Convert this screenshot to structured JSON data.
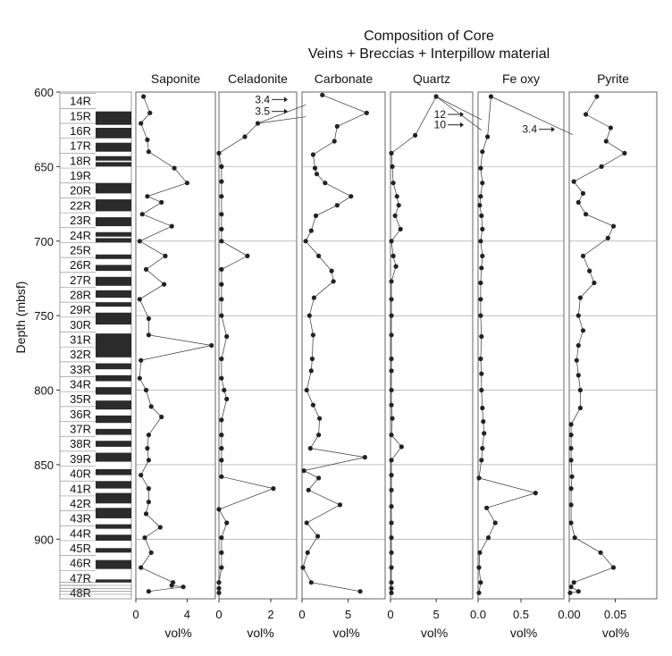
{
  "chart_data": {
    "type": "scatter",
    "title": "Composition of Core",
    "subtitle": "Veins + Breccias + Interpillow material",
    "ylabel": "Depth (mbsf)",
    "ylim": [
      600,
      940
    ],
    "yticks": [
      600,
      650,
      700,
      750,
      800,
      850,
      900
    ],
    "boundaries": [
      650,
      700,
      750,
      800,
      850,
      900
    ],
    "cores": [
      "14R",
      "15R",
      "16R",
      "17R",
      "18R",
      "19R",
      "20R",
      "22R",
      "23R",
      "24R",
      "25R",
      "26R",
      "27R",
      "28R",
      "29R",
      "30R",
      "31R",
      "32R",
      "33R",
      "34R",
      "35R",
      "36R",
      "37R",
      "38R",
      "39R",
      "40R",
      "41R",
      "42R",
      "43R",
      "44R",
      "45R",
      "46R",
      "47R",
      "48R"
    ],
    "recovery_blocks": [
      [
        613,
        622
      ],
      [
        624,
        631
      ],
      [
        634,
        640
      ],
      [
        643,
        646
      ],
      [
        647,
        650
      ],
      [
        661,
        668
      ],
      [
        672,
        680
      ],
      [
        684,
        690
      ],
      [
        694,
        697
      ],
      [
        698,
        701
      ],
      [
        709,
        712
      ],
      [
        716,
        720
      ],
      [
        724,
        730
      ],
      [
        733,
        738
      ],
      [
        741,
        744
      ],
      [
        748,
        756
      ],
      [
        762,
        778
      ],
      [
        782,
        786
      ],
      [
        790,
        794
      ],
      [
        798,
        803
      ],
      [
        807,
        813
      ],
      [
        817,
        822
      ],
      [
        826,
        830
      ],
      [
        834,
        838
      ],
      [
        842,
        848
      ],
      [
        853,
        857
      ],
      [
        861,
        866
      ],
      [
        869,
        876
      ],
      [
        879,
        886
      ],
      [
        890,
        893
      ],
      [
        897,
        901
      ],
      [
        906,
        909
      ],
      [
        914,
        920
      ],
      [
        927,
        929
      ]
    ],
    "panels": [
      {
        "name": "Saponite",
        "xlim": [
          0,
          6.2
        ],
        "xticks": [
          0,
          4
        ],
        "tick_labels": [
          "0",
          "4"
        ],
        "xlabel": "vol%",
        "points": [
          [
            0.6,
            603
          ],
          [
            1.1,
            614
          ],
          [
            0.4,
            621
          ],
          [
            0.9,
            632
          ],
          [
            1.0,
            640
          ],
          [
            3.0,
            651
          ],
          [
            4.0,
            661
          ],
          [
            0.9,
            670
          ],
          [
            2.0,
            674
          ],
          [
            0.5,
            682
          ],
          [
            2.8,
            690
          ],
          [
            0.3,
            700
          ],
          [
            2.3,
            710
          ],
          [
            0.8,
            719
          ],
          [
            2.2,
            729
          ],
          [
            0.3,
            739
          ],
          [
            1.0,
            752
          ],
          [
            1.0,
            763
          ],
          [
            5.9,
            770
          ],
          [
            0.4,
            780
          ],
          [
            0.3,
            792
          ],
          [
            0.8,
            800
          ],
          [
            1.2,
            811
          ],
          [
            2.0,
            818
          ],
          [
            1.0,
            830
          ],
          [
            0.9,
            839
          ],
          [
            1.0,
            847
          ],
          [
            0.4,
            857
          ],
          [
            1.0,
            866
          ],
          [
            1.0,
            875
          ],
          [
            0.8,
            883
          ],
          [
            1.9,
            892
          ],
          [
            0.7,
            899
          ],
          [
            1.2,
            909
          ],
          [
            0.4,
            919
          ],
          [
            2.9,
            929
          ],
          [
            3.7,
            932
          ],
          [
            1.0,
            935
          ],
          [
            2.8,
            931
          ]
        ]
      },
      {
        "name": "Celadonite",
        "xlim": [
          0,
          3.0
        ],
        "xticks": [
          0,
          2
        ],
        "tick_labels": [
          "0",
          "2"
        ],
        "xlabel": "vol%",
        "points": [
          [
            1.0,
            630
          ],
          [
            1.5,
            621
          ],
          [
            0,
            641
          ],
          [
            0.1,
            650
          ],
          [
            0.1,
            660
          ],
          [
            0.1,
            670
          ],
          [
            0.1,
            682
          ],
          [
            0.1,
            692
          ],
          [
            0.1,
            700
          ],
          [
            1.1,
            710
          ],
          [
            0.1,
            719
          ],
          [
            0.1,
            729
          ],
          [
            0.1,
            739
          ],
          [
            0.1,
            750
          ],
          [
            0.3,
            764
          ],
          [
            0.1,
            779
          ],
          [
            0.1,
            792
          ],
          [
            0.2,
            800
          ],
          [
            0.3,
            806
          ],
          [
            0.1,
            820
          ],
          [
            0.1,
            830
          ],
          [
            0.1,
            839
          ],
          [
            0.1,
            847
          ],
          [
            0.1,
            858
          ],
          [
            2.1,
            866
          ],
          [
            0,
            880
          ],
          [
            0.3,
            889
          ],
          [
            0.1,
            899
          ],
          [
            0.1,
            909
          ],
          [
            0.1,
            919
          ],
          [
            0,
            929
          ],
          [
            0,
            933
          ],
          [
            0,
            936
          ]
        ],
        "off_scale": [
          {
            "label": "3.4",
            "depth": 605
          },
          {
            "label": "3.5",
            "depth": 613
          }
        ]
      },
      {
        "name": "Carbonate",
        "xlim": [
          0,
          9.0
        ],
        "xticks": [
          0,
          5
        ],
        "tick_labels": [
          "0",
          "5"
        ],
        "xlabel": "vol%",
        "points": [
          [
            2.2,
            602
          ],
          [
            7.0,
            614
          ],
          [
            3.8,
            623
          ],
          [
            3.5,
            633
          ],
          [
            1.2,
            642
          ],
          [
            1.4,
            651
          ],
          [
            1.6,
            655
          ],
          [
            2.5,
            661
          ],
          [
            5.3,
            670
          ],
          [
            3.8,
            676
          ],
          [
            1.5,
            683
          ],
          [
            1.0,
            693
          ],
          [
            0.4,
            700
          ],
          [
            1.8,
            710
          ],
          [
            3.2,
            720
          ],
          [
            3.4,
            727
          ],
          [
            1.3,
            738
          ],
          [
            0.8,
            750
          ],
          [
            1.2,
            763
          ],
          [
            1.1,
            779
          ],
          [
            1.0,
            787
          ],
          [
            0.5,
            800
          ],
          [
            1.2,
            810
          ],
          [
            1.9,
            819
          ],
          [
            1.8,
            830
          ],
          [
            0.9,
            839
          ],
          [
            6.8,
            845
          ],
          [
            0.2,
            854
          ],
          [
            1.8,
            859
          ],
          [
            0.7,
            867
          ],
          [
            4.1,
            877
          ],
          [
            0.5,
            889
          ],
          [
            1.7,
            898
          ],
          [
            0.6,
            909
          ],
          [
            0.1,
            919
          ],
          [
            1.0,
            929
          ],
          [
            6.3,
            935
          ]
        ]
      },
      {
        "name": "Quartz",
        "xlim": [
          0,
          9.0
        ],
        "xticks": [
          0,
          5
        ],
        "tick_labels": [
          "0",
          "5"
        ],
        "xlabel": "vol%",
        "points": [
          [
            5.0,
            603
          ],
          [
            2.7,
            629
          ],
          [
            0.1,
            641
          ],
          [
            0.2,
            650
          ],
          [
            0.3,
            661
          ],
          [
            0.7,
            670
          ],
          [
            0.9,
            676
          ],
          [
            0.5,
            683
          ],
          [
            1.1,
            692
          ],
          [
            0.1,
            700
          ],
          [
            0.3,
            710
          ],
          [
            0.6,
            717
          ],
          [
            0.1,
            727
          ],
          [
            0.1,
            739
          ],
          [
            0.1,
            750
          ],
          [
            0.1,
            763
          ],
          [
            0.1,
            779
          ],
          [
            0.1,
            787
          ],
          [
            0.1,
            800
          ],
          [
            0.1,
            810
          ],
          [
            0.2,
            819
          ],
          [
            0.1,
            830
          ],
          [
            1.2,
            838
          ],
          [
            0.1,
            847
          ],
          [
            0.1,
            857
          ],
          [
            0.1,
            867
          ],
          [
            0.1,
            878
          ],
          [
            0.1,
            889
          ],
          [
            0.1,
            899
          ],
          [
            0.1,
            909
          ],
          [
            0.1,
            919
          ],
          [
            0.1,
            929
          ],
          [
            0.1,
            933
          ],
          [
            0.1,
            936
          ]
        ],
        "off_scale": [
          {
            "label": "12",
            "depth": 615
          },
          {
            "label": "10",
            "depth": 622
          }
        ]
      },
      {
        "name": "Fe oxy",
        "xlim": [
          0,
          1.0
        ],
        "xticks": [
          0,
          0.5
        ],
        "tick_labels": [
          "0.0",
          "0.5"
        ],
        "xlabel": "vol%",
        "points": [
          [
            0.15,
            603
          ],
          [
            0.11,
            630
          ],
          [
            0.05,
            640
          ],
          [
            0.03,
            651
          ],
          [
            0.05,
            661
          ],
          [
            0.03,
            670
          ],
          [
            0.02,
            676
          ],
          [
            0.04,
            683
          ],
          [
            0.05,
            692
          ],
          [
            0.03,
            700
          ],
          [
            0.05,
            710
          ],
          [
            0.04,
            718
          ],
          [
            0.03,
            728
          ],
          [
            0.03,
            739
          ],
          [
            0.03,
            750
          ],
          [
            0.04,
            764
          ],
          [
            0.03,
            779
          ],
          [
            0.04,
            789
          ],
          [
            0.04,
            800
          ],
          [
            0.05,
            812
          ],
          [
            0.06,
            821
          ],
          [
            0.07,
            829
          ],
          [
            0.05,
            839
          ],
          [
            0.04,
            847
          ],
          [
            0.01,
            859
          ],
          [
            0.67,
            869
          ],
          [
            0.1,
            879
          ],
          [
            0.2,
            889
          ],
          [
            0.12,
            899
          ],
          [
            0.02,
            909
          ],
          [
            0.01,
            919
          ],
          [
            0.03,
            929
          ],
          [
            0.01,
            936
          ]
        ],
        "off_scale": [
          {
            "label": "3.4",
            "depth": 625
          }
        ]
      },
      {
        "name": "Pyrite",
        "xlim": [
          0,
          0.095
        ],
        "xticks": [
          0,
          0.05
        ],
        "tick_labels": [
          "0.00",
          "0.05"
        ],
        "xlabel": "vol%",
        "points": [
          [
            0.03,
            603
          ],
          [
            0.018,
            615
          ],
          [
            0.045,
            624
          ],
          [
            0.04,
            633
          ],
          [
            0.06,
            641
          ],
          [
            0.035,
            650
          ],
          [
            0.005,
            660
          ],
          [
            0.015,
            668
          ],
          [
            0.01,
            674
          ],
          [
            0.018,
            682
          ],
          [
            0.048,
            690
          ],
          [
            0.042,
            698
          ],
          [
            0.015,
            710
          ],
          [
            0.022,
            720
          ],
          [
            0.027,
            728
          ],
          [
            0.012,
            738
          ],
          [
            0.01,
            750
          ],
          [
            0.015,
            760
          ],
          [
            0.01,
            770
          ],
          [
            0.008,
            780
          ],
          [
            0.01,
            790
          ],
          [
            0.012,
            800
          ],
          [
            0.012,
            812
          ],
          [
            0.002,
            823
          ],
          [
            0.002,
            830
          ],
          [
            0.002,
            839
          ],
          [
            0.002,
            847
          ],
          [
            0.003,
            858
          ],
          [
            0.002,
            866
          ],
          [
            0.002,
            877
          ],
          [
            0.002,
            889
          ],
          [
            0.006,
            899
          ],
          [
            0.034,
            909
          ],
          [
            0.048,
            919
          ],
          [
            0.005,
            929
          ],
          [
            0.002,
            932
          ],
          [
            0.01,
            935
          ],
          [
            0.001,
            936
          ]
        ]
      }
    ]
  }
}
